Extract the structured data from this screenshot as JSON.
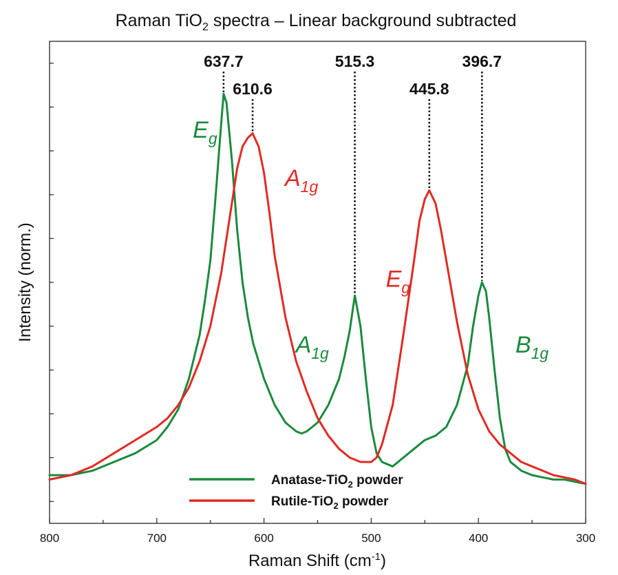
{
  "chart_data": {
    "type": "line",
    "title": {
      "prefix": "Raman TiO",
      "sub": "2",
      "suffix": " spectra – Linear background subtracted"
    },
    "xlabel": {
      "prefix": "Raman Shift (cm",
      "sup": "-1",
      "suffix": ")"
    },
    "ylabel": "Intensity (norm.)",
    "xlim": [
      800,
      300
    ],
    "ylim": [
      -0.05,
      1.05
    ],
    "x_reversed": true,
    "xticks": [
      800,
      700,
      600,
      500,
      400,
      300
    ],
    "xtick_labels": [
      "800",
      "700",
      "600",
      "500",
      "400",
      "300"
    ],
    "xminor_step": 50,
    "yticks": [
      0.0,
      0.1,
      0.2,
      0.3,
      0.4,
      0.5,
      0.6,
      0.7,
      0.8,
      0.9,
      1.0
    ],
    "grid": false,
    "legend_position": "bottom-center",
    "series": [
      {
        "name_prefix": "Anatase-TiO",
        "name_sub": "2",
        "name_suffix": " powder",
        "color": "#1a8a3c",
        "x": [
          800,
          780,
          760,
          740,
          720,
          700,
          690,
          680,
          670,
          660,
          655,
          650,
          645,
          640,
          637.7,
          635,
          630,
          625,
          620,
          615,
          610,
          600,
          590,
          580,
          570,
          565,
          560,
          550,
          540,
          530,
          525,
          520,
          515.3,
          510,
          505,
          500,
          495,
          490,
          480,
          470,
          460,
          450,
          440,
          430,
          420,
          410,
          405,
          400,
          396.7,
          393,
          390,
          385,
          380,
          375,
          370,
          360,
          350,
          340,
          330,
          320,
          310,
          300
        ],
        "y": [
          0.06,
          0.06,
          0.07,
          0.09,
          0.11,
          0.14,
          0.17,
          0.21,
          0.28,
          0.38,
          0.46,
          0.55,
          0.7,
          0.86,
          0.93,
          0.91,
          0.78,
          0.62,
          0.5,
          0.42,
          0.36,
          0.28,
          0.22,
          0.18,
          0.16,
          0.155,
          0.16,
          0.18,
          0.22,
          0.28,
          0.33,
          0.39,
          0.47,
          0.4,
          0.28,
          0.17,
          0.11,
          0.09,
          0.08,
          0.1,
          0.12,
          0.14,
          0.15,
          0.17,
          0.22,
          0.31,
          0.4,
          0.47,
          0.5,
          0.48,
          0.42,
          0.3,
          0.19,
          0.12,
          0.09,
          0.07,
          0.06,
          0.055,
          0.05,
          0.05,
          0.045,
          0.04
        ]
      },
      {
        "name_prefix": "Rutile-TiO",
        "name_sub": "2",
        "name_suffix": " powder",
        "color": "#e02a22",
        "x": [
          800,
          780,
          760,
          740,
          720,
          700,
          690,
          680,
          670,
          660,
          650,
          640,
          630,
          625,
          620,
          615,
          610.6,
          605,
          600,
          595,
          590,
          580,
          570,
          560,
          550,
          540,
          530,
          520,
          510,
          500,
          495,
          490,
          480,
          470,
          460,
          455,
          450,
          445.8,
          440,
          435,
          430,
          420,
          410,
          400,
          390,
          380,
          370,
          360,
          350,
          340,
          330,
          320,
          310,
          300
        ],
        "y": [
          0.05,
          0.06,
          0.08,
          0.11,
          0.14,
          0.17,
          0.19,
          0.22,
          0.26,
          0.32,
          0.4,
          0.52,
          0.68,
          0.76,
          0.81,
          0.83,
          0.84,
          0.81,
          0.75,
          0.66,
          0.56,
          0.42,
          0.32,
          0.25,
          0.19,
          0.15,
          0.12,
          0.1,
          0.09,
          0.09,
          0.1,
          0.13,
          0.22,
          0.38,
          0.55,
          0.64,
          0.69,
          0.71,
          0.68,
          0.62,
          0.55,
          0.41,
          0.29,
          0.21,
          0.16,
          0.13,
          0.11,
          0.09,
          0.08,
          0.07,
          0.06,
          0.055,
          0.05,
          0.04
        ]
      }
    ],
    "peak_labels": [
      {
        "text": "637.7",
        "x": 637.7,
        "y": 0.93,
        "row": 1
      },
      {
        "text": "610.6",
        "x": 610.6,
        "y": 0.84,
        "row": 2
      },
      {
        "text": "515.3",
        "x": 515.3,
        "y": 0.47,
        "row": 1
      },
      {
        "text": "445.8",
        "x": 445.8,
        "y": 0.71,
        "row": 2
      },
      {
        "text": "396.7",
        "x": 396.7,
        "y": 0.5,
        "row": 1
      }
    ],
    "mode_labels": [
      {
        "base": "E",
        "sub": "g",
        "series": 0,
        "x": 655,
        "y": 0.83
      },
      {
        "base": "A",
        "sub": "1g",
        "series": 1,
        "x": 565,
        "y": 0.72
      },
      {
        "base": "A",
        "sub": "1g",
        "series": 0,
        "x": 555,
        "y": 0.34
      },
      {
        "base": "E",
        "sub": "g",
        "series": 1,
        "x": 475,
        "y": 0.49
      },
      {
        "base": "B",
        "sub": "1g",
        "series": 0,
        "x": 350,
        "y": 0.34
      }
    ]
  }
}
